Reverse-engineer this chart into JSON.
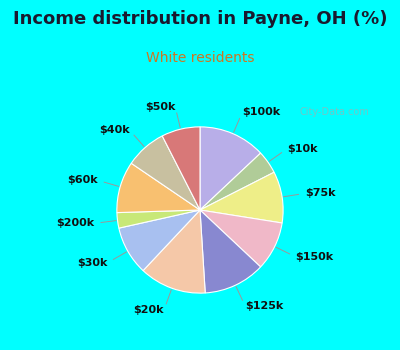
{
  "title": "Income distribution in Payne, OH (%)",
  "subtitle": "White residents",
  "bg_color": "#00ffff",
  "chart_bg": "#e8f5ee",
  "title_color": "#1a1a2e",
  "subtitle_color": "#cc7722",
  "watermark": "City-Data.com",
  "labels": [
    "$100k",
    "$10k",
    "$75k",
    "$150k",
    "$125k",
    "$20k",
    "$30k",
    "$200k",
    "$60k",
    "$40k",
    "$50k"
  ],
  "sizes": [
    13.0,
    4.5,
    10.0,
    9.5,
    12.0,
    13.0,
    9.5,
    3.0,
    10.0,
    8.0,
    7.5
  ],
  "colors": [
    "#b8aee8",
    "#b0cc98",
    "#eeee88",
    "#f0b8c8",
    "#8888d0",
    "#f5c8a8",
    "#a8c0f0",
    "#c8e878",
    "#f8c070",
    "#c8c0a0",
    "#d87878"
  ],
  "title_fontsize": 13,
  "subtitle_fontsize": 10,
  "label_fontsize": 8
}
